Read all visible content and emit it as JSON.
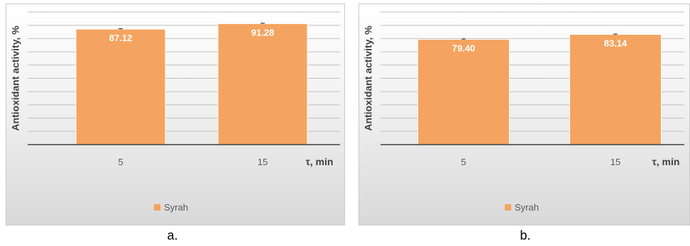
{
  "colors": {
    "bar": "#f4a460",
    "bar_stroke": "#ffffff",
    "grid": "#bfbfbf",
    "axis": "#404040",
    "value_label": "#ffffff",
    "text": "#595959"
  },
  "captions": [
    "a.",
    "b."
  ],
  "chart_data": [
    {
      "type": "bar",
      "categories": [
        "5",
        "15"
      ],
      "series": [
        {
          "name": "Syrah",
          "values": [
            87.12,
            91.28
          ],
          "error": [
            0.3,
            0.3
          ]
        }
      ],
      "value_labels": [
        "87.12",
        "91.28"
      ],
      "ylabel": "Antioxidant activity, %",
      "xlabel": "τ, min",
      "ylim": [
        0,
        100
      ],
      "y_tick_step": 10,
      "y_tick_labels_shown": false,
      "grid": true,
      "legend": "bottom-center"
    },
    {
      "type": "bar",
      "categories": [
        "5",
        "15"
      ],
      "series": [
        {
          "name": "Syrah",
          "values": [
            79.4,
            83.14
          ],
          "error": [
            0.3,
            0.3
          ]
        }
      ],
      "value_labels": [
        "79.40",
        "83.14"
      ],
      "ylabel": "Antioxidant activity, %",
      "xlabel": "τ, min",
      "ylim": [
        0,
        100
      ],
      "y_tick_step": 10,
      "y_tick_labels_shown": false,
      "grid": true,
      "legend": "bottom-center"
    }
  ]
}
